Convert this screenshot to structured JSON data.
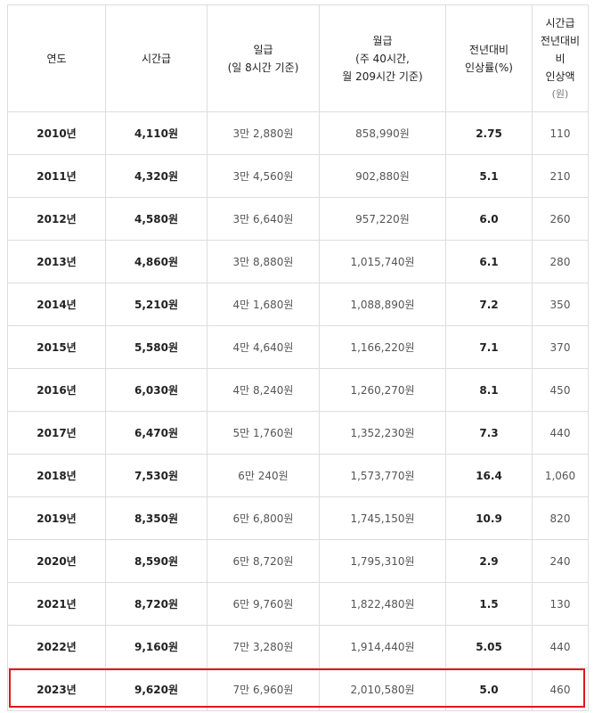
{
  "table": {
    "header": [
      [
        "연도"
      ],
      [
        "시간급"
      ],
      [
        "일급",
        "(일 8시간 기준)"
      ],
      [
        "월급",
        "(주 40시간,",
        "월 209시간 기준)"
      ],
      [
        "전년대비",
        "인상률(%)"
      ],
      [
        "시간급",
        "전년대비",
        "비",
        "인상액",
        "(원)"
      ]
    ],
    "rows": [
      [
        "2010년",
        "4,110원",
        "3만 2,880원",
        "858,990원",
        "2.75",
        "110"
      ],
      [
        "2011년",
        "4,320원",
        "3만 4,560원",
        "902,880원",
        "5.1",
        "210"
      ],
      [
        "2012년",
        "4,580원",
        "3만 6,640원",
        "957,220원",
        "6.0",
        "260"
      ],
      [
        "2013년",
        "4,860원",
        "3만 8,880원",
        "1,015,740원",
        "6.1",
        "280"
      ],
      [
        "2014년",
        "5,210원",
        "4만 1,680원",
        "1,088,890원",
        "7.2",
        "350"
      ],
      [
        "2015년",
        "5,580원",
        "4만 4,640원",
        "1,166,220원",
        "7.1",
        "370"
      ],
      [
        "2016년",
        "6,030원",
        "4만 8,240원",
        "1,260,270원",
        "8.1",
        "450"
      ],
      [
        "2017년",
        "6,470원",
        "5만 1,760원",
        "1,352,230원",
        "7.3",
        "440"
      ],
      [
        "2018년",
        "7,530원",
        "6만 240원",
        "1,573,770원",
        "16.4",
        "1,060"
      ],
      [
        "2019년",
        "8,350원",
        "6만 6,800원",
        "1,745,150원",
        "10.9",
        "820"
      ],
      [
        "2020년",
        "8,590원",
        "6만 8,720원",
        "1,795,310원",
        "2.9",
        "240"
      ],
      [
        "2021년",
        "8,720원",
        "6만 9,760원",
        "1,822,480원",
        "1.5",
        "130"
      ],
      [
        "2022년",
        "9,160원",
        "7만 3,280원",
        "1,914,440원",
        "5.05",
        "440"
      ],
      [
        "2023년",
        "9,620원",
        "7만 6,960원",
        "2,010,580원",
        "5.0",
        "460"
      ]
    ]
  }
}
